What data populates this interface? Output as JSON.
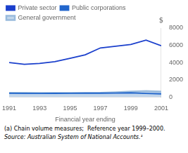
{
  "chart_data": {
    "type": "line",
    "x": [
      1991,
      1992,
      1993,
      1994,
      1995,
      1996,
      1997,
      1998,
      1999,
      2000,
      2001
    ],
    "series": [
      {
        "name": "Private sector",
        "color": "#1a3fcc",
        "values": [
          4000,
          3800,
          3900,
          4100,
          4500,
          4900,
          5700,
          5900,
          6100,
          6600,
          5950
        ]
      },
      {
        "name": "Public corporations",
        "color": "#2266cc",
        "values": [
          450,
          430,
          430,
          440,
          450,
          460,
          460,
          470,
          500,
          430,
          380
        ]
      },
      {
        "name": "General government",
        "color": "#99bbdd",
        "type": "area",
        "values": [
          500,
          490,
          480,
          470,
          470,
          480,
          490,
          560,
          650,
          700,
          650
        ]
      }
    ],
    "xlabel": "Financial year ending",
    "ylabel": "$",
    "xlim": [
      1991,
      2001
    ],
    "xticks": [
      1991,
      1993,
      1995,
      1997,
      1999,
      2001
    ],
    "ylim": [
      0,
      8000
    ],
    "yticks": [
      0,
      2000,
      4000,
      6000,
      8000
    ],
    "grid": false,
    "legend": "upper left",
    "annotations": [
      "(a) Chain volume measures;  Reference year 1999–2000.",
      "Source: Australian System of National Accounts.¹"
    ]
  }
}
